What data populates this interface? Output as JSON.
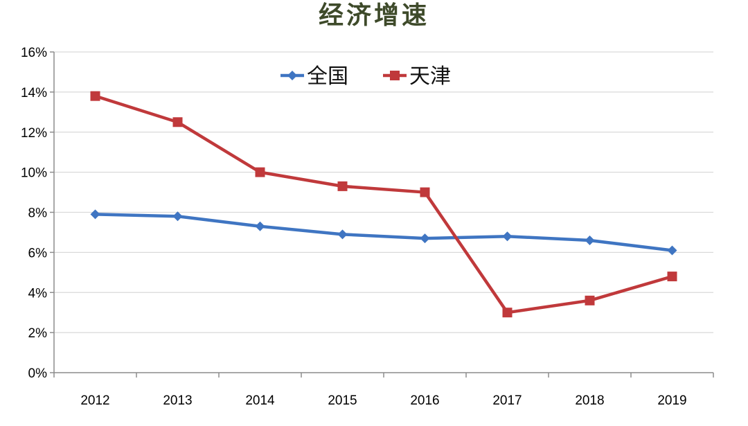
{
  "chart_data": {
    "type": "line",
    "title": "经济增速",
    "categories": [
      "2012",
      "2013",
      "2014",
      "2015",
      "2016",
      "2017",
      "2018",
      "2019"
    ],
    "series": [
      {
        "name": "全国",
        "color": "#3f75c2",
        "marker": "diamond",
        "values": [
          7.9,
          7.8,
          7.3,
          6.9,
          6.7,
          6.8,
          6.6,
          6.1
        ]
      },
      {
        "name": "天津",
        "color": "#c0393b",
        "marker": "square",
        "values": [
          13.8,
          12.5,
          10.0,
          9.3,
          9.0,
          3.0,
          3.6,
          4.8
        ]
      }
    ],
    "ylim": [
      0,
      16
    ],
    "ytick_values": [
      0,
      2,
      4,
      6,
      8,
      10,
      12,
      14,
      16
    ],
    "ytick_labels": [
      "0%",
      "2%",
      "4%",
      "6%",
      "8%",
      "10%",
      "12%",
      "14%",
      "16%"
    ],
    "grid": true,
    "legend_position": "top-center",
    "xlabel": "",
    "ylabel": ""
  }
}
